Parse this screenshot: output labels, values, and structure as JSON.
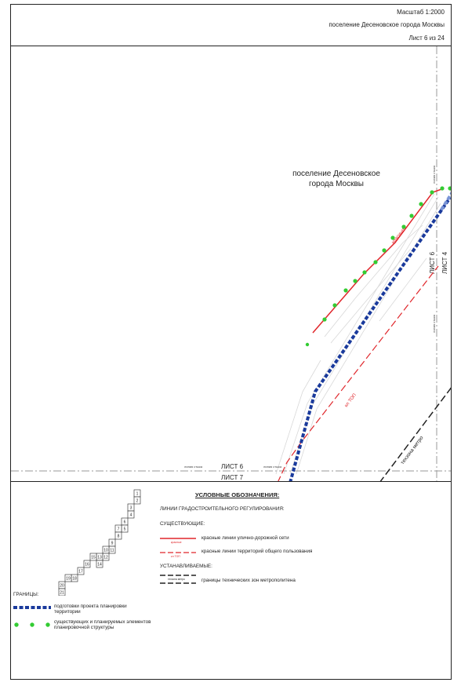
{
  "header": {
    "scale": "Масштаб 1:2000",
    "settlement": "поселение Десеновское города Москвы",
    "sheet": "Лист 6 из 24"
  },
  "map": {
    "place_label_line1": "поселение Десеновское",
    "place_label_line2": "города Москвы",
    "sheet_6": "ЛИСТ 6",
    "sheet_7": "ЛИСТ 7",
    "sheet_4": "ЛИСТ 4",
    "stitch_line": "линия стыка",
    "red_line_label": "красные",
    "kl_label": "кл ТОП",
    "metro_zone_label": "техзона метро"
  },
  "legend": {
    "title": "УСЛОВНЫЕ ОБОЗНАЧЕНИЯ:",
    "regulation_lines": "ЛИНИИ ГРАДОСТРОИТЕЛЬНОГО РЕГУЛИРОВАНИЯ:",
    "existing": "СУЩЕСТВУЮЩИЕ:",
    "red_lines_streets_tag": "красные",
    "red_lines_streets": "красные линии улично-дорожной сети",
    "red_lines_public_tag": "кл ТОП",
    "red_lines_public": "красные линии территорий общего пользования",
    "established": "УСТАНАВЛИВАЕМЫЕ:",
    "metro_tag": "техзона метро",
    "metro_zones": "границы технических зон метрополитена",
    "borders": "ГРАНИЦЫ:",
    "planning_territory": "подготовки проекта планировки территории",
    "structure_elements": "существующих и планируемых элементов планировочной структуры"
  },
  "sheet_index": [
    "1",
    "2",
    "3",
    "4",
    "5",
    "6",
    "7",
    "8",
    "9",
    "10",
    "11",
    "12",
    "13",
    "14",
    "15",
    "16",
    "17",
    "18",
    "19",
    "20",
    "21",
    "22",
    "23",
    "24"
  ],
  "colors": {
    "red_line": "#e0262b",
    "blue_border": "#1a3a9c",
    "green_dot": "#33cc33",
    "black": "#222222"
  }
}
